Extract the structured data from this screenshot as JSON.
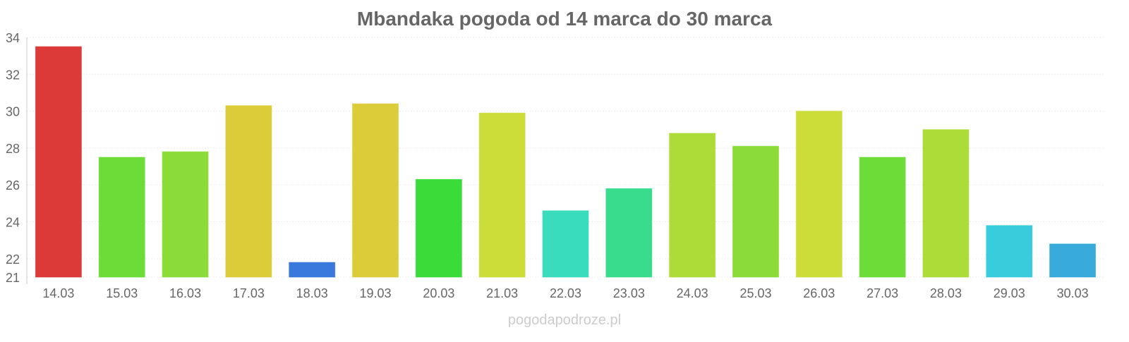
{
  "chart_data": {
    "type": "bar",
    "title": "Mbandaka pogoda od 14 marca do 30 marca",
    "xlabel": "",
    "ylabel": "",
    "ylim": [
      21,
      34
    ],
    "yticks": [
      21,
      22,
      24,
      26,
      28,
      30,
      32,
      34
    ],
    "grid": true,
    "categories": [
      "14.03",
      "15.03",
      "16.03",
      "17.03",
      "18.03",
      "19.03",
      "20.03",
      "21.03",
      "22.03",
      "23.03",
      "24.03",
      "25.03",
      "26.03",
      "27.03",
      "28.03",
      "29.03",
      "30.03"
    ],
    "values": [
      33.5,
      27.5,
      27.8,
      30.3,
      21.8,
      30.4,
      26.3,
      29.9,
      24.6,
      25.8,
      28.8,
      28.1,
      30.0,
      27.5,
      29.0,
      23.8,
      22.8
    ],
    "colors": [
      "#db3535",
      "#6adb35",
      "#8adb35",
      "#dbcb35",
      "#3575db",
      "#dbcb35",
      "#35db35",
      "#cbdb35",
      "#35dbbb",
      "#35db8a",
      "#abdb35",
      "#8adb35",
      "#cbdb35",
      "#6adb35",
      "#abdb35",
      "#35cbdb",
      "#35a8db"
    ]
  },
  "watermark": "pogodapodroze.pl"
}
